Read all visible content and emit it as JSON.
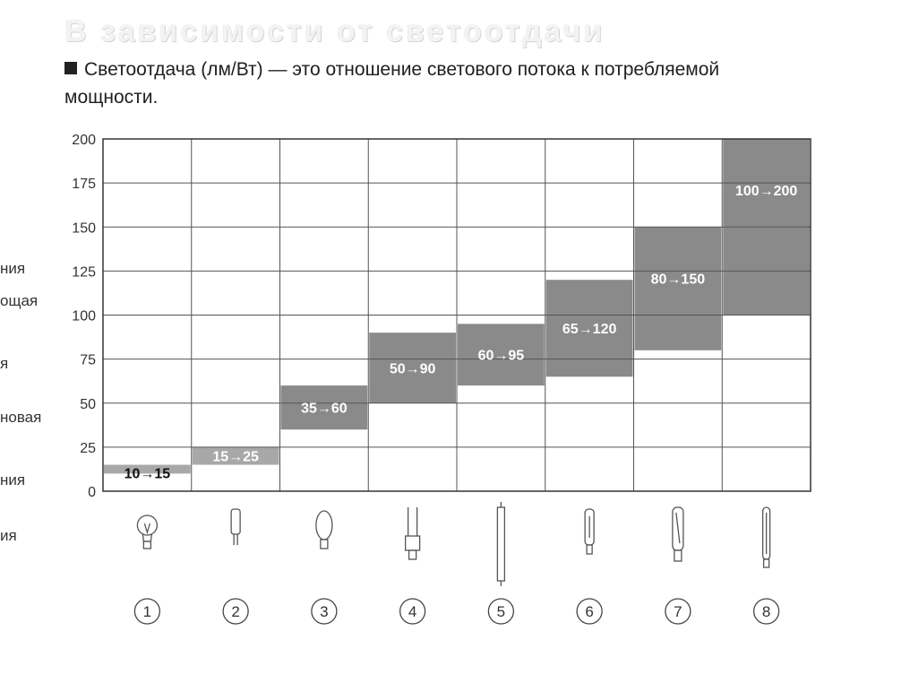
{
  "heading": "В зависимости от светоотдачи",
  "intro": "Светоотдача (лм/Вт) — это отношение светового потока к потребляемой мощности.",
  "left_fragments": [
    "ния",
    "ощая",
    "я",
    "новая",
    "ния",
    "ия"
  ],
  "colors": {
    "bar": "#8a8a8a",
    "bar_light": "#a8a8a8",
    "grid": "#555555",
    "text": "#333333"
  },
  "chart_data": {
    "type": "bar",
    "subtype": "floating-range",
    "ylim": [
      0,
      200
    ],
    "yticks": [
      0,
      25,
      50,
      75,
      100,
      125,
      150,
      175,
      200
    ],
    "grid": true,
    "categories": [
      "1",
      "2",
      "3",
      "4",
      "5",
      "6",
      "7",
      "8"
    ],
    "ranges": [
      {
        "low": 10,
        "high": 15,
        "label": "10→15"
      },
      {
        "low": 15,
        "high": 25,
        "label": "15→25"
      },
      {
        "low": 35,
        "high": 60,
        "label": "35→60"
      },
      {
        "low": 50,
        "high": 90,
        "label": "50→90"
      },
      {
        "low": 60,
        "high": 95,
        "label": "60→95"
      },
      {
        "low": 65,
        "high": 120,
        "label": "65→120"
      },
      {
        "low": 80,
        "high": 150,
        "label": "80→150"
      },
      {
        "low": 100,
        "high": 200,
        "label": "100→200"
      }
    ],
    "icons": [
      "incandescent-bulb-icon",
      "halogen-capsule-icon",
      "mercury-lamp-icon",
      "compact-fluorescent-icon",
      "linear-fluorescent-tube-icon",
      "metal-halide-lamp-icon",
      "high-pressure-sodium-lamp-icon",
      "low-pressure-sodium-lamp-icon"
    ]
  }
}
